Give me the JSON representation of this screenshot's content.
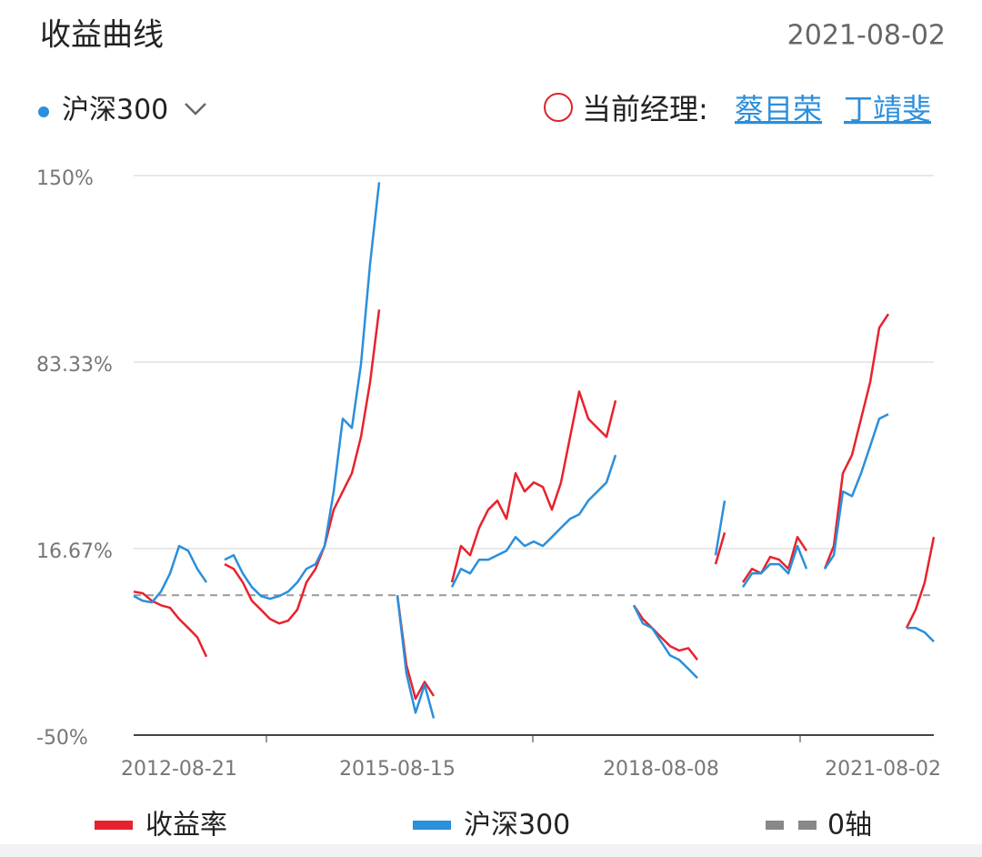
{
  "header": {
    "title": "收益曲线",
    "date": "2021-08-02"
  },
  "selector": {
    "label": "沪深300"
  },
  "managers": {
    "label": "当前经理:",
    "names": [
      "蔡目荣",
      "丁靖斐"
    ]
  },
  "chart_data": {
    "type": "line",
    "categories": [
      "2012-08-21",
      null,
      null,
      null,
      null,
      null,
      null,
      null,
      null,
      null,
      null,
      null,
      null,
      null,
      null,
      null,
      null,
      null,
      null,
      null,
      null,
      null,
      null,
      null,
      null,
      null,
      null,
      null,
      null,
      "2015-08-15",
      null,
      null,
      null,
      null,
      null,
      null,
      null,
      null,
      null,
      null,
      null,
      null,
      null,
      null,
      null,
      null,
      null,
      null,
      null,
      null,
      null,
      null,
      null,
      null,
      null,
      null,
      null,
      null,
      "2018-08-08",
      null,
      null,
      null,
      null,
      null,
      null,
      null,
      null,
      null,
      null,
      null,
      null,
      null,
      null,
      null,
      null,
      null,
      null,
      null,
      null,
      null,
      null,
      null,
      null,
      null,
      null,
      null,
      null,
      null,
      "2021-08-02"
    ],
    "series": [
      {
        "name": "收益率",
        "color": "#e8222d",
        "values": [
          1.3,
          0.7,
          -2,
          -3.6,
          -4.5,
          -8.5,
          -11.7,
          -15,
          -22,
          null,
          11.1,
          9.4,
          4.6,
          -2,
          -5.2,
          -8.5,
          -10.1,
          -9.1,
          -5.2,
          4.6,
          9.4,
          17.6,
          30.6,
          37.1,
          43.6,
          56.6,
          76.1,
          102.1,
          null,
          0,
          -25,
          -37,
          -31,
          -36,
          null,
          4.6,
          17.6,
          14.3,
          24.1,
          30.6,
          33.8,
          27.3,
          43.6,
          37.1,
          40.3,
          38.7,
          30.6,
          40.3,
          56.6,
          72.8,
          63.1,
          59.8,
          56.6,
          69.6,
          null,
          -3.6,
          -8.5,
          -11.7,
          -15,
          -18.2,
          -19.8,
          -18.9,
          -23.1,
          null,
          11.1,
          22.4,
          null,
          4.6,
          9.4,
          7.8,
          13.7,
          12.7,
          9.4,
          20.8,
          15.9,
          null,
          9.4,
          17.6,
          43.6,
          50.1,
          63.1,
          76.1,
          95.6,
          100.5,
          null,
          -11.7,
          -5.2,
          4.6,
          20.8
        ]
      },
      {
        "name": "沪深300",
        "color": "#2a8fdc",
        "values": [
          -0.3,
          -2,
          -2.6,
          1.3,
          7.8,
          17.6,
          15.9,
          9.4,
          4.6,
          null,
          12.7,
          14.3,
          7.8,
          2.9,
          -0.3,
          -1.3,
          -0.3,
          1.3,
          4.6,
          9.4,
          11.1,
          17.6,
          37.1,
          63.1,
          59.8,
          82.6,
          118.4,
          147.6,
          null,
          0,
          -28,
          -42,
          -32,
          -44,
          null,
          2.9,
          9.4,
          7.8,
          12.7,
          12.7,
          14.3,
          15.9,
          20.8,
          17.6,
          19.2,
          17.6,
          20.8,
          24.1,
          27.3,
          28.9,
          33.8,
          37.1,
          40.3,
          50.1,
          null,
          -3.6,
          -10.1,
          -11.7,
          -16.6,
          -21.5,
          -23.1,
          -26.3,
          -29.6,
          null,
          14.3,
          33.8,
          null,
          2.9,
          7.8,
          7.8,
          11.1,
          11.1,
          7.8,
          17.6,
          9.4,
          null,
          9.4,
          14.3,
          37.1,
          35.4,
          43.6,
          53.3,
          63.1,
          64.7,
          null,
          -11.7,
          -11.7,
          -13.3,
          -16.6
        ]
      }
    ],
    "zero_line_label": "0轴",
    "ylim": [
      -50,
      150
    ],
    "yticks": [
      {
        "value": -50,
        "label": "-50%"
      },
      {
        "value": 16.67,
        "label": "16.67%"
      },
      {
        "value": 83.33,
        "label": "83.33%"
      },
      {
        "value": 150,
        "label": "150%"
      }
    ],
    "grid": true,
    "legend": "bottom"
  }
}
